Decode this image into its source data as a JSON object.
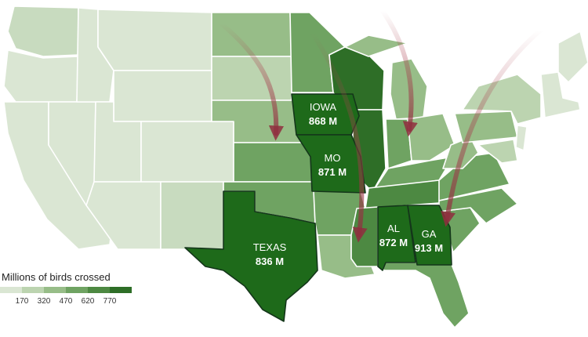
{
  "legend": {
    "title": "Millions of birds crossed",
    "ticks": [
      "170",
      "320",
      "470",
      "620",
      "770"
    ],
    "colors": [
      "#dae6d3",
      "#bcd4b0",
      "#97bd88",
      "#6fa362",
      "#4d8942",
      "#2e6e27"
    ]
  },
  "colors": {
    "highlight": "#1e6a1a",
    "highlight_border": "#14361a",
    "arrow": "#a9404f",
    "state_border": "#ffffff"
  },
  "highlights": [
    {
      "id": "iowa",
      "name": "IOWA",
      "value": "868 M"
    },
    {
      "id": "mo",
      "name": "MO",
      "value": "871 M"
    },
    {
      "id": "texas",
      "name": "TEXAS",
      "value": "836 M"
    },
    {
      "id": "al",
      "name": "AL",
      "value": "872 M"
    },
    {
      "id": "ga",
      "name": "GA",
      "value": "913 M"
    }
  ],
  "icons": [
    "migration-arrow-icon"
  ]
}
